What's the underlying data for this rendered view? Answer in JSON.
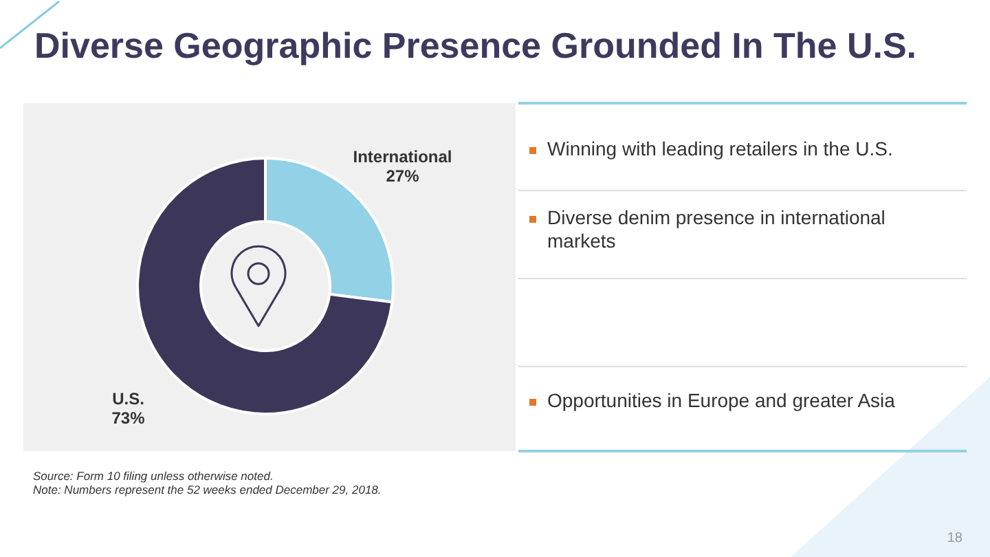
{
  "chart_data": {
    "type": "donut",
    "title": "Diverse Geographic Presence Grounded In The U.S.",
    "categories": [
      "International",
      "U.S."
    ],
    "values": [
      27,
      73
    ],
    "colors": [
      "#92d1e6",
      "#3c3759"
    ],
    "value_labels": [
      "27%",
      "73%"
    ],
    "annotations": [
      "Winning with leading retailers in the U.S.",
      "Diverse denim presence in international markets",
      "Opportunities in Europe and greater Asia",
      "Source: Form 10 filing unless otherwise noted.",
      "Note: Numbers represent the 52 weeks ended December 29, 2018.",
      "18"
    ]
  }
}
